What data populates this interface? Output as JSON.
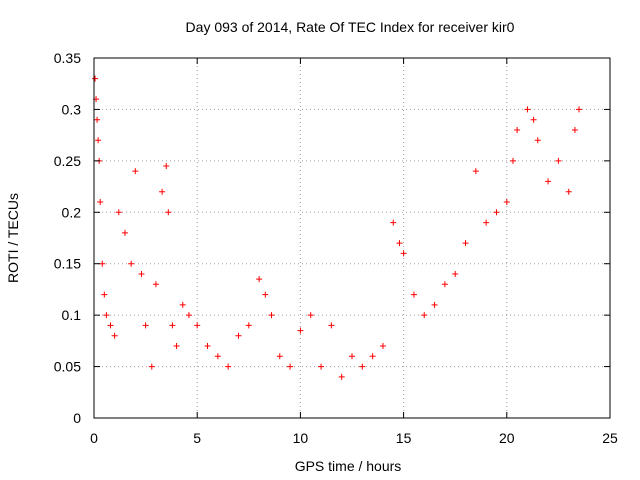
{
  "chart_data": {
    "type": "scatter",
    "title": "Day 093 of 2014, Rate Of TEC Index for receiver kir0",
    "xlabel": "GPS time / hours",
    "ylabel": "ROTI / TECUs",
    "xlim": [
      0,
      25
    ],
    "ylim": [
      0,
      0.35
    ],
    "xticks": [
      0,
      5,
      10,
      15,
      20,
      25
    ],
    "yticks": [
      0,
      0.05,
      0.1,
      0.15,
      0.2,
      0.25,
      0.3,
      0.35
    ],
    "xtick_labels": [
      "0",
      "5",
      "10",
      "15",
      "20",
      "25"
    ],
    "ytick_labels": [
      "0",
      "0.05",
      "0.1",
      "0.15",
      "0.2",
      "0.25",
      "0.3",
      "0.35"
    ],
    "grid": true,
    "marker": "+",
    "color": "#ff0000",
    "series": [
      {
        "x": [
          0.05,
          0.1,
          0.15,
          0.2,
          0.25,
          0.3,
          0.4,
          0.5,
          0.6,
          0.8,
          1.0,
          1.2,
          1.5,
          1.8,
          2.0,
          2.3,
          2.5,
          2.8,
          3.0,
          3.3,
          3.5,
          3.6,
          3.8,
          4.0,
          4.3,
          4.6,
          5.0,
          5.5,
          6.0,
          6.5,
          7.0,
          7.5,
          8.0,
          8.3,
          8.6,
          9.0,
          9.5,
          10.0,
          10.5,
          11.0,
          11.5,
          12.0,
          12.5,
          13.0,
          13.5,
          14.0,
          14.5,
          14.8,
          15.0,
          15.5,
          16.0,
          16.5,
          17.0,
          17.5,
          18.0,
          18.5,
          19.0,
          19.5,
          20.0,
          20.3,
          20.5,
          21.0,
          21.3,
          21.5,
          22.0,
          22.5,
          23.0,
          23.3,
          23.5
        ],
        "y": [
          0.33,
          0.31,
          0.29,
          0.27,
          0.25,
          0.21,
          0.15,
          0.12,
          0.1,
          0.09,
          0.08,
          0.2,
          0.18,
          0.15,
          0.24,
          0.14,
          0.09,
          0.05,
          0.13,
          0.22,
          0.245,
          0.2,
          0.09,
          0.07,
          0.11,
          0.1,
          0.09,
          0.07,
          0.06,
          0.05,
          0.08,
          0.09,
          0.135,
          0.12,
          0.1,
          0.06,
          0.05,
          0.085,
          0.1,
          0.05,
          0.09,
          0.04,
          0.06,
          0.05,
          0.06,
          0.07,
          0.19,
          0.17,
          0.16,
          0.12,
          0.1,
          0.11,
          0.13,
          0.14,
          0.17,
          0.24,
          0.19,
          0.2,
          0.21,
          0.25,
          0.28,
          0.3,
          0.29,
          0.27,
          0.23,
          0.25,
          0.22,
          0.28,
          0.3
        ]
      }
    ]
  }
}
